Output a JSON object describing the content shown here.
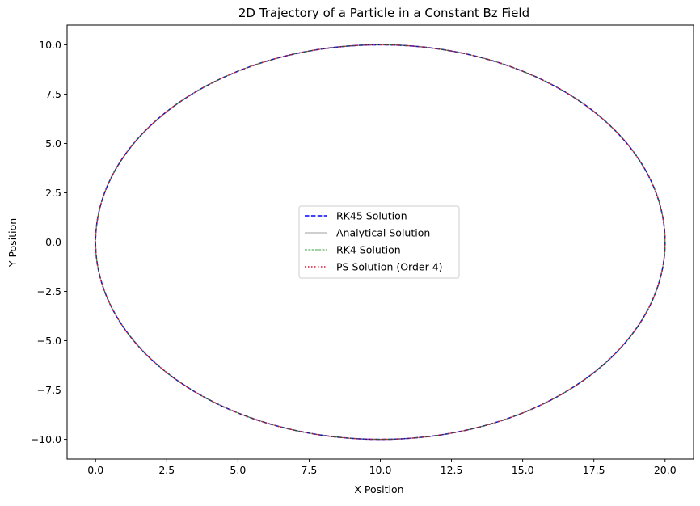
{
  "chart_data": {
    "type": "line",
    "title": "2D Trajectory of a Particle in a Constant Bz Field",
    "xlabel": "X Position",
    "ylabel": "Y Position",
    "xlim": [
      -1.0,
      21.0
    ],
    "ylim": [
      -11.0,
      11.0
    ],
    "xticks": [
      0.0,
      2.5,
      5.0,
      7.5,
      10.0,
      12.5,
      15.0,
      17.5,
      20.0
    ],
    "xtick_labels": [
      "0.0",
      "2.5",
      "5.0",
      "7.5",
      "10.0",
      "12.5",
      "15.0",
      "17.5",
      "20.0"
    ],
    "yticks": [
      -10.0,
      -7.5,
      -5.0,
      -2.5,
      0.0,
      2.5,
      5.0,
      7.5,
      10.0
    ],
    "ytick_labels": [
      "−10.0",
      "−7.5",
      "−5.0",
      "−2.5",
      "0.0",
      "2.5",
      "5.0",
      "7.5",
      "10.0"
    ],
    "grid": false,
    "legend_position": "center",
    "trajectory": {
      "shape": "circle",
      "center": [
        10.0,
        0.0
      ],
      "radius": 10.0
    },
    "series": [
      {
        "name": "RK45 Solution",
        "color": "#0000ff",
        "style": "dashed"
      },
      {
        "name": "Analytical Solution",
        "color": "#bfbfbf",
        "style": "solid"
      },
      {
        "name": "RK4 Solution",
        "color": "#008000",
        "style": "dashed-thin"
      },
      {
        "name": "PS Solution (Order 4)",
        "color": "#dc143c",
        "style": "dotted"
      }
    ]
  }
}
